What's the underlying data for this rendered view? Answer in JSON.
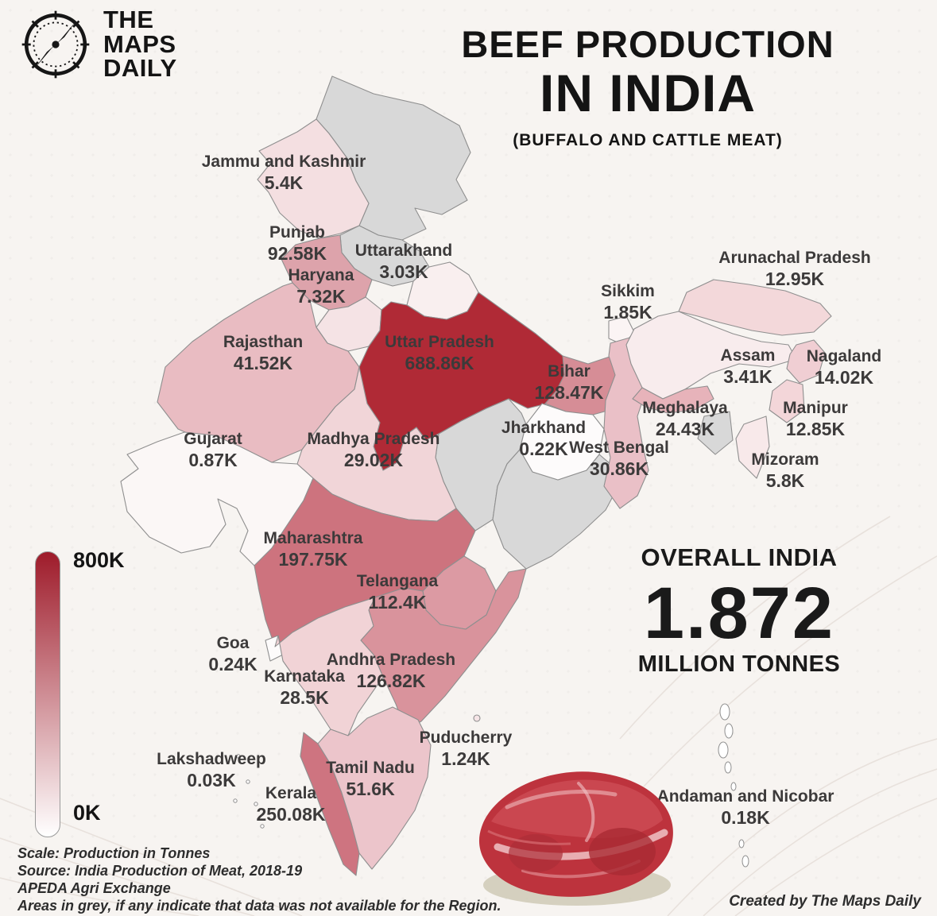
{
  "brand": {
    "logo_lines": [
      "THE",
      "MAPS",
      "DAILY"
    ],
    "logo_icon": "compass-rose-icon"
  },
  "title": {
    "line1": "BEEF PRODUCTION",
    "line2": "IN INDIA",
    "subtitle": "(BUFFALO AND CATTLE MEAT)"
  },
  "legend": {
    "max_label": "800K",
    "min_label": "0K",
    "max_color": "#9e1b2a",
    "min_color": "#ffffff"
  },
  "overall": {
    "heading": "OVERALL INDIA",
    "value": "1.872",
    "unit": "MILLION TONNES"
  },
  "footer": {
    "lines": [
      "Scale: Production in Tonnes",
      "Source: India Production of Meat, 2018-19",
      "APEDA Agri Exchange",
      "Areas in grey, if any indicate that data was not available for the Region."
    ],
    "credit": "Created by The Maps Daily"
  },
  "map": {
    "no_data_color": "#d8d8d8",
    "states": [
      {
        "key": "jammu_kashmir",
        "name": "Jammu and Kashmir",
        "value": "5.4K",
        "color": "#f4dfe1"
      },
      {
        "key": "punjab",
        "name": "Punjab",
        "value": "92.58K",
        "color": "#dda3ab"
      },
      {
        "key": "uttarakhand",
        "name": "Uttarakhand",
        "value": "3.03K",
        "color": "#f9efef"
      },
      {
        "key": "haryana",
        "name": "Haryana",
        "value": "7.32K",
        "color": "#f5e3e5"
      },
      {
        "key": "rajasthan",
        "name": "Rajasthan",
        "value": "41.52K",
        "color": "#e9bcc2"
      },
      {
        "key": "uttar_pradesh",
        "name": "Uttar Pradesh",
        "value": "688.86K",
        "color": "#b02a36"
      },
      {
        "key": "bihar",
        "name": "Bihar",
        "value": "128.47K",
        "color": "#d68d96"
      },
      {
        "key": "sikkim",
        "name": "Sikkim",
        "value": "1.85K",
        "color": "#fbf4f4"
      },
      {
        "key": "arunachal_pradesh",
        "name": "Arunachal Pradesh",
        "value": "12.95K",
        "color": "#f3d8da"
      },
      {
        "key": "assam",
        "name": "Assam",
        "value": "3.41K",
        "color": "#f8eced"
      },
      {
        "key": "nagaland",
        "name": "Nagaland",
        "value": "14.02K",
        "color": "#f0ced3"
      },
      {
        "key": "meghalaya",
        "name": "Meghalaya",
        "value": "24.43K",
        "color": "#e7b3ba"
      },
      {
        "key": "manipur",
        "name": "Manipur",
        "value": "12.85K",
        "color": "#f3d6d9"
      },
      {
        "key": "mizoram",
        "name": "Mizoram",
        "value": "5.8K",
        "color": "#f8e9ea"
      },
      {
        "key": "west_bengal",
        "name": "West Bengal",
        "value": "30.86K",
        "color": "#eac0c7"
      },
      {
        "key": "jharkhand",
        "name": "Jharkhand",
        "value": "0.22K",
        "color": "#fdfbfb"
      },
      {
        "key": "gujarat",
        "name": "Gujarat",
        "value": "0.87K",
        "color": "#fbf7f6"
      },
      {
        "key": "madhya_pradesh",
        "name": "Madhya Pradesh",
        "value": "29.02K",
        "color": "#f1d5d8"
      },
      {
        "key": "maharashtra",
        "name": "Maharashtra",
        "value": "197.75K",
        "color": "#cd737e"
      },
      {
        "key": "telangana",
        "name": "Telangana",
        "value": "112.4K",
        "color": "#dc9aa3"
      },
      {
        "key": "goa",
        "name": "Goa",
        "value": "0.24K",
        "color": "#fdfbfb"
      },
      {
        "key": "karnataka",
        "name": "Karnataka",
        "value": "28.5K",
        "color": "#f1d3d6"
      },
      {
        "key": "andhra_pradesh",
        "name": "Andhra Pradesh",
        "value": "126.82K",
        "color": "#d9939c"
      },
      {
        "key": "lakshadweep",
        "name": "Lakshadweep",
        "value": "0.03K",
        "color": "#fefcfc"
      },
      {
        "key": "kerala",
        "name": "Kerala",
        "value": "250.08K",
        "color": "#ce7480"
      },
      {
        "key": "tamil_nadu",
        "name": "Tamil Nadu",
        "value": "51.6K",
        "color": "#ecc5cb"
      },
      {
        "key": "puducherry",
        "name": "Puducherry",
        "value": "1.24K",
        "color": "#f6e4e6"
      },
      {
        "key": "andaman_nicobar",
        "name": "Andaman and Nicobar",
        "value": "0.18K",
        "color": "#ffffff"
      }
    ]
  },
  "chart_data": {
    "type": "heatmap",
    "subtype": "choropleth-map",
    "title": "BEEF PRODUCTION IN INDIA (BUFFALO AND CATTLE MEAT)",
    "unit": "Production in Tonnes (K = thousand)",
    "scale": {
      "min": 0,
      "max": 800000,
      "min_label": "0K",
      "max_label": "800K",
      "low_color": "#ffffff",
      "high_color": "#9e1b2a"
    },
    "categories": [
      "Jammu and Kashmir",
      "Punjab",
      "Uttarakhand",
      "Haryana",
      "Rajasthan",
      "Uttar Pradesh",
      "Bihar",
      "Sikkim",
      "Arunachal Pradesh",
      "Assam",
      "Nagaland",
      "Meghalaya",
      "Manipur",
      "Mizoram",
      "West Bengal",
      "Jharkhand",
      "Gujarat",
      "Madhya Pradesh",
      "Maharashtra",
      "Telangana",
      "Goa",
      "Karnataka",
      "Andhra Pradesh",
      "Lakshadweep",
      "Kerala",
      "Tamil Nadu",
      "Puducherry",
      "Andaman and Nicobar"
    ],
    "values_thousand_tonnes": [
      5.4,
      92.58,
      3.03,
      7.32,
      41.52,
      688.86,
      128.47,
      1.85,
      12.95,
      3.41,
      14.02,
      24.43,
      12.85,
      5.8,
      30.86,
      0.22,
      0.87,
      29.02,
      197.75,
      112.4,
      0.24,
      28.5,
      126.82,
      0.03,
      250.08,
      51.6,
      1.24,
      0.18
    ],
    "overall_total": "1.872 MILLION TONNES",
    "notes": "Areas in grey, if any indicate that data was not available for the Region."
  }
}
